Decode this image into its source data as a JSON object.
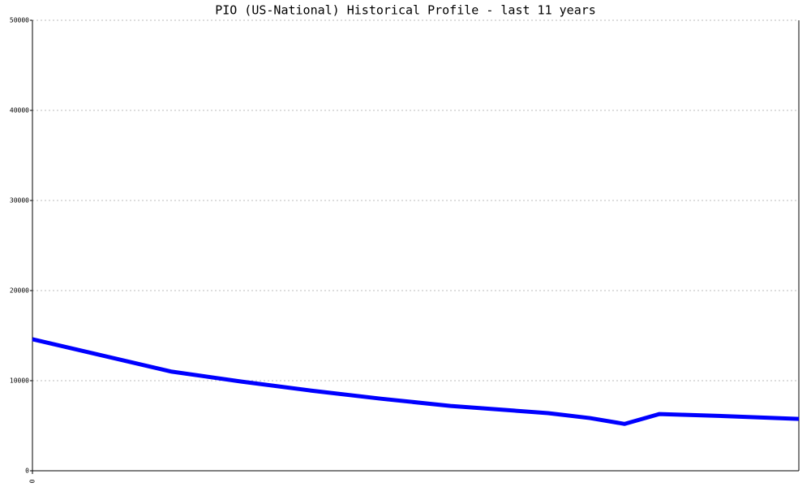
{
  "chart_data": {
    "type": "line",
    "title": "PIO (US-National) Historical Profile - last 11 years",
    "x": [
      0,
      1,
      2,
      3,
      4,
      5,
      6,
      7.4,
      8,
      8.5,
      9,
      10,
      11
    ],
    "series": [
      {
        "name": "PIO",
        "color": "#0000ff",
        "values": [
          14600,
          12800,
          11000,
          9900,
          8900,
          8000,
          7200,
          6400,
          5850,
          5200,
          6300,
          6050,
          5750
        ]
      }
    ],
    "xlim": [
      0,
      11
    ],
    "xticks": [
      0
    ],
    "ylim": [
      0,
      50000
    ],
    "yticks": [
      0,
      10000,
      20000,
      30000,
      40000,
      50000
    ],
    "grid": true
  }
}
